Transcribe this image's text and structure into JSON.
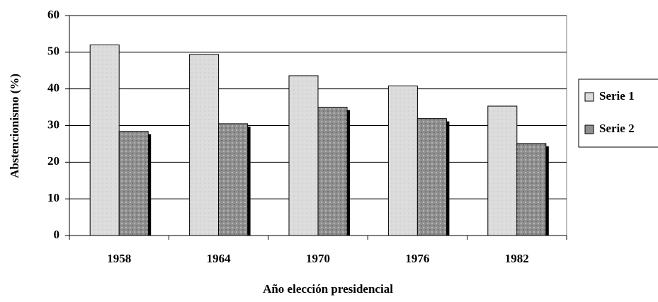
{
  "chart_data": {
    "type": "bar",
    "x_label": "Año elección presidencial",
    "y_label": "Abstencionismo (%)",
    "categories": [
      "1958",
      "1964",
      "1970",
      "1976",
      "1982"
    ],
    "series": [
      {
        "name": "Serie 1",
        "color": "#dcdcdc",
        "values": [
          52,
          49.4,
          43.6,
          40.8,
          35.3
        ]
      },
      {
        "name": "Serie 2",
        "color": "#8f8f8f",
        "values": [
          28.4,
          30.5,
          35,
          31.9,
          25.1
        ]
      }
    ],
    "ylim": [
      0,
      60
    ],
    "yticks": [
      0,
      10,
      20,
      30,
      40,
      50,
      60
    ],
    "grid": true
  }
}
